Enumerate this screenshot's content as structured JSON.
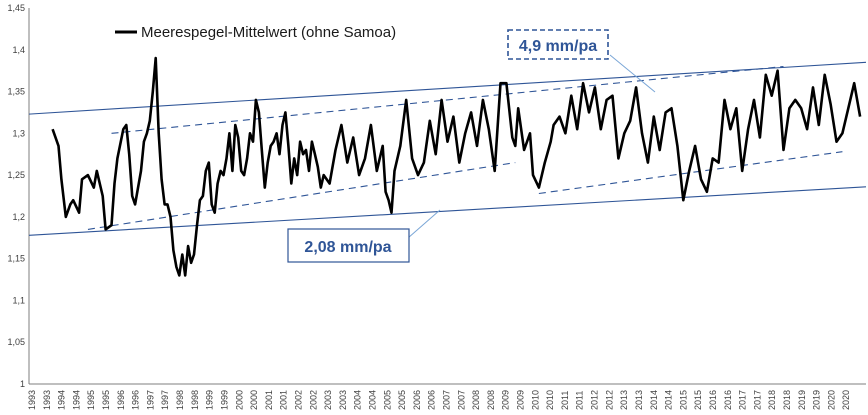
{
  "chart_data": {
    "type": "line",
    "title": "",
    "xlabel": "",
    "ylabel": "",
    "ylim": [
      1,
      1.45
    ],
    "xlim": [
      1993,
      2021.4
    ],
    "y_ticks": [
      "1",
      "1,05",
      "1,1",
      "1,15",
      "1,2",
      "1,25",
      "1,3",
      "1,35",
      "1,4",
      "1,45"
    ],
    "x_ticks": [
      "1993",
      "1993",
      "1994",
      "1994",
      "1995",
      "1995",
      "1996",
      "1996",
      "1997",
      "1997",
      "1998",
      "1998",
      "1999",
      "1999",
      "2000",
      "2000",
      "2001",
      "2001",
      "2002",
      "2002",
      "2003",
      "2003",
      "2004",
      "2004",
      "2005",
      "2005",
      "2006",
      "2006",
      "2007",
      "2007",
      "2008",
      "2008",
      "2009",
      "2009",
      "2010",
      "2010",
      "2011",
      "2011",
      "2012",
      "2012",
      "2013",
      "2013",
      "2014",
      "2014",
      "2015",
      "2015",
      "2016",
      "2016",
      "2017",
      "2017",
      "2018",
      "2018",
      "2019",
      "2019",
      "2020",
      "2020"
    ],
    "grid": false,
    "legend": {
      "position": "top-left",
      "label": "Meerespegel-Mittelwert (ohne Samoa)"
    },
    "colors": {
      "series": "#000000",
      "trend": "#2f5597",
      "annotation_border": "#2f5597",
      "annotation_text": "#2f5597"
    },
    "series": [
      {
        "name": "Meerespegel-Mittelwert (ohne Samoa)",
        "x": [
          1993.8,
          1994.0,
          1994.1,
          1994.25,
          1994.4,
          1994.5,
          1994.7,
          1994.8,
          1995.0,
          1995.2,
          1995.3,
          1995.5,
          1995.6,
          1995.8,
          1995.9,
          1996.0,
          1996.2,
          1996.3,
          1996.4,
          1996.5,
          1996.6,
          1996.8,
          1996.9,
          1997.0,
          1997.1,
          1997.2,
          1997.3,
          1997.4,
          1997.5,
          1997.6,
          1997.7,
          1997.8,
          1997.9,
          1998.0,
          1998.1,
          1998.2,
          1998.3,
          1998.4,
          1998.5,
          1998.6,
          1998.7,
          1998.8,
          1998.9,
          1999.0,
          1999.1,
          1999.2,
          1999.3,
          1999.4,
          1999.5,
          1999.6,
          1999.7,
          1999.8,
          1999.9,
          2000.0,
          2000.1,
          2000.2,
          2000.3,
          2000.4,
          2000.5,
          2000.6,
          2000.7,
          2000.8,
          2000.9,
          2001.0,
          2001.1,
          2001.2,
          2001.3,
          2001.4,
          2001.5,
          2001.6,
          2001.7,
          2001.8,
          2001.9,
          2002.0,
          2002.1,
          2002.2,
          2002.3,
          2002.4,
          2002.5,
          2002.6,
          2002.7,
          2002.8,
          2002.9,
          2003.0,
          2003.2,
          2003.4,
          2003.6,
          2003.8,
          2004.0,
          2004.2,
          2004.4,
          2004.6,
          2004.8,
          2005.0,
          2005.1,
          2005.2,
          2005.3,
          2005.4,
          2005.6,
          2005.8,
          2006.0,
          2006.2,
          2006.4,
          2006.6,
          2006.8,
          2007.0,
          2007.2,
          2007.4,
          2007.6,
          2007.8,
          2008.0,
          2008.2,
          2008.4,
          2008.6,
          2008.8,
          2009.0,
          2009.2,
          2009.4,
          2009.5,
          2009.6,
          2009.8,
          2010.0,
          2010.1,
          2010.3,
          2010.5,
          2010.7,
          2010.8,
          2011.0,
          2011.2,
          2011.4,
          2011.6,
          2011.8,
          2012.0,
          2012.2,
          2012.4,
          2012.6,
          2012.8,
          2013.0,
          2013.2,
          2013.4,
          2013.6,
          2013.8,
          2014.0,
          2014.2,
          2014.4,
          2014.6,
          2014.8,
          2015.0,
          2015.2,
          2015.4,
          2015.6,
          2015.8,
          2016.0,
          2016.2,
          2016.4,
          2016.6,
          2016.8,
          2017.0,
          2017.2,
          2017.4,
          2017.6,
          2017.8,
          2018.0,
          2018.2,
          2018.4,
          2018.6,
          2018.8,
          2019.0,
          2019.2,
          2019.4,
          2019.6,
          2019.8,
          2020.0,
          2020.2,
          2020.4,
          2020.6,
          2020.8,
          2021.0,
          2021.2
        ],
        "values": [
          1.305,
          1.285,
          1.245,
          1.2,
          1.215,
          1.22,
          1.205,
          1.245,
          1.25,
          1.235,
          1.255,
          1.225,
          1.185,
          1.19,
          1.24,
          1.27,
          1.305,
          1.31,
          1.275,
          1.225,
          1.215,
          1.255,
          1.29,
          1.3,
          1.315,
          1.35,
          1.39,
          1.3,
          1.245,
          1.215,
          1.215,
          1.2,
          1.16,
          1.14,
          1.13,
          1.155,
          1.13,
          1.165,
          1.145,
          1.155,
          1.19,
          1.22,
          1.225,
          1.255,
          1.265,
          1.215,
          1.205,
          1.24,
          1.255,
          1.25,
          1.27,
          1.3,
          1.255,
          1.31,
          1.295,
          1.255,
          1.25,
          1.27,
          1.3,
          1.29,
          1.34,
          1.325,
          1.28,
          1.235,
          1.265,
          1.285,
          1.29,
          1.3,
          1.275,
          1.31,
          1.325,
          1.285,
          1.24,
          1.27,
          1.25,
          1.29,
          1.275,
          1.28,
          1.255,
          1.29,
          1.275,
          1.26,
          1.235,
          1.25,
          1.24,
          1.28,
          1.31,
          1.265,
          1.295,
          1.25,
          1.27,
          1.31,
          1.255,
          1.285,
          1.23,
          1.22,
          1.205,
          1.255,
          1.285,
          1.34,
          1.27,
          1.25,
          1.265,
          1.315,
          1.275,
          1.34,
          1.29,
          1.32,
          1.265,
          1.3,
          1.325,
          1.285,
          1.34,
          1.305,
          1.255,
          1.36,
          1.36,
          1.295,
          1.285,
          1.33,
          1.28,
          1.3,
          1.25,
          1.235,
          1.265,
          1.29,
          1.31,
          1.32,
          1.3,
          1.345,
          1.305,
          1.36,
          1.325,
          1.355,
          1.305,
          1.34,
          1.345,
          1.27,
          1.3,
          1.315,
          1.355,
          1.3,
          1.265,
          1.32,
          1.28,
          1.325,
          1.33,
          1.285,
          1.22,
          1.255,
          1.285,
          1.245,
          1.23,
          1.27,
          1.265,
          1.34,
          1.305,
          1.33,
          1.255,
          1.305,
          1.34,
          1.295,
          1.37,
          1.345,
          1.375,
          1.28,
          1.33,
          1.34,
          1.33,
          1.305,
          1.355,
          1.31,
          1.37,
          1.335,
          1.29,
          1.3,
          1.33,
          1.36,
          1.32
        ]
      }
    ],
    "trend_lines": [
      {
        "label": "",
        "style": "solid",
        "x": [
          1993,
          2021.4
        ],
        "y": [
          1.178,
          1.236
        ]
      },
      {
        "label": "",
        "style": "solid",
        "x": [
          1993,
          2021.4
        ],
        "y": [
          1.323,
          1.385
        ]
      },
      {
        "label": "",
        "style": "dashed",
        "x": [
          1995.0,
          2009.5
        ],
        "y": [
          1.185,
          1.265
        ]
      },
      {
        "label": "",
        "style": "dashed",
        "x": [
          1995.8,
          2018.6
        ],
        "y": [
          1.3,
          1.38
        ]
      },
      {
        "label": "",
        "style": "dashed",
        "x": [
          2010.3,
          2020.6
        ],
        "y": [
          1.228,
          1.278
        ]
      }
    ],
    "annotations": [
      {
        "text": "4,9 mm/pa",
        "box": "dashed"
      },
      {
        "text": "2,08 mm/pa",
        "box": "solid"
      }
    ]
  }
}
